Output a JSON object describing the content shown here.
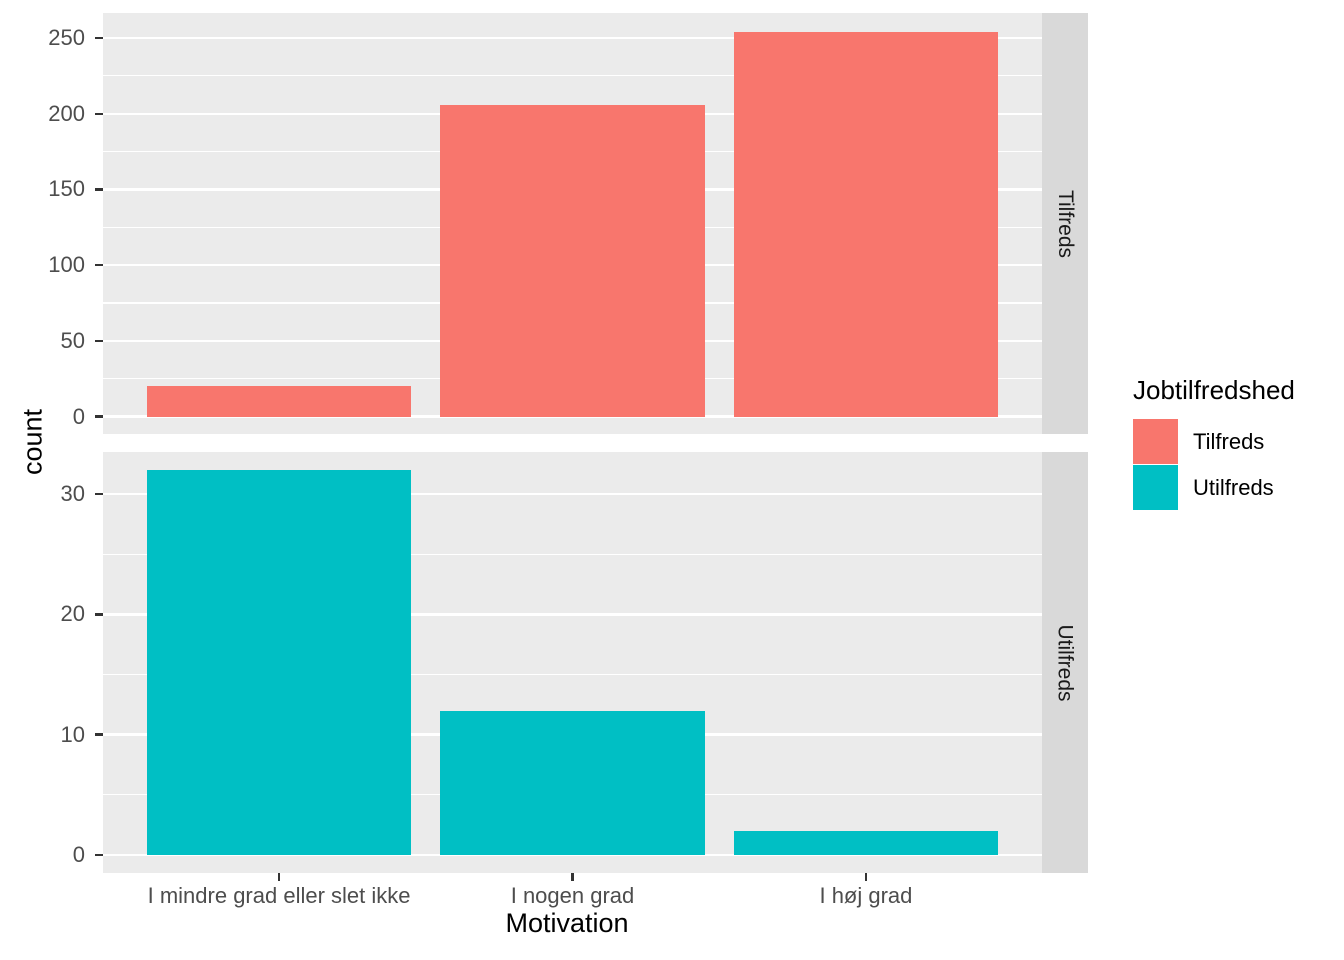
{
  "chart_data": {
    "type": "bar",
    "title": "",
    "xlabel": "Motivation",
    "ylabel": "count",
    "categories": [
      "I mindre grad eller slet ikke",
      "I nogen grad",
      "I høj grad"
    ],
    "facet_variable": "Jobtilfredshed",
    "facet_layout": "rows",
    "grid": true,
    "bar_rel_width": 0.9,
    "facets": [
      {
        "name": "Tilfreds",
        "color": "#F8766D",
        "values": [
          20,
          206,
          254
        ],
        "y_ticks": [
          0,
          50,
          100,
          150,
          200,
          250
        ],
        "ylim": [
          -11.5,
          266.5
        ]
      },
      {
        "name": "Utilfreds",
        "color": "#00BFC4",
        "values": [
          32,
          12,
          2
        ],
        "y_ticks": [
          0,
          10,
          20,
          30
        ],
        "ylim": [
          -1.5,
          33.5
        ]
      }
    ],
    "legend": {
      "title": "Jobtilfredshed",
      "position": "right",
      "entries": [
        {
          "label": "Tilfreds",
          "color": "#F8766D"
        },
        {
          "label": "Utilfreds",
          "color": "#00BFC4"
        }
      ]
    },
    "theme": {
      "panel_bg": "#EBEBEB",
      "strip_bg": "#D9D9D9",
      "grid_color": "#FFFFFF",
      "axis_text_color": "#4D4D4D",
      "title_color": "#000000",
      "tick_color": "#333333"
    }
  }
}
